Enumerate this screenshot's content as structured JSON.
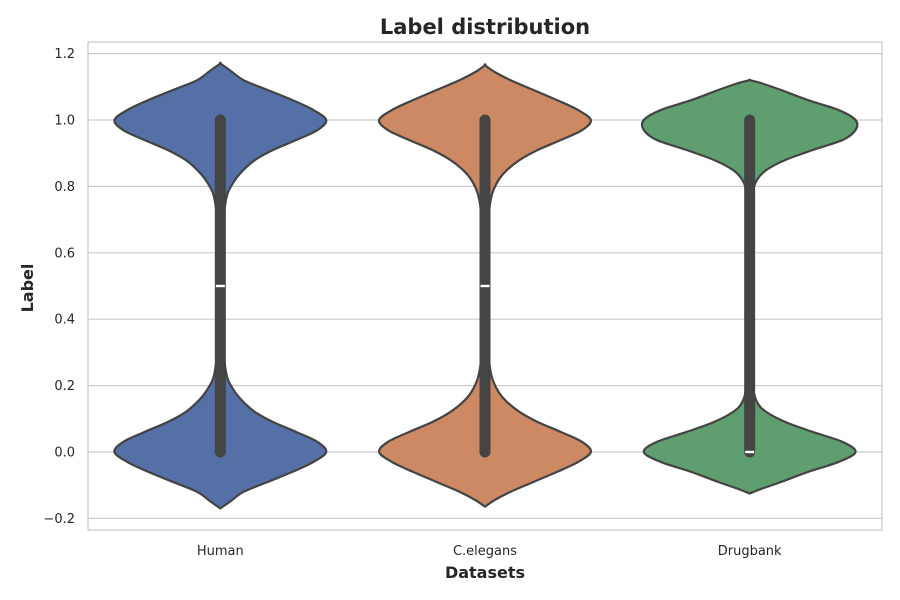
{
  "chart_data": {
    "type": "violin",
    "title": "Label distribution",
    "xlabel": "Datasets",
    "ylabel": "Label",
    "categories": [
      "Human",
      "C.elegans",
      "Drugbank"
    ],
    "ylim": [
      -0.235,
      1.235
    ],
    "yticks": [
      -0.2,
      0.0,
      0.2,
      0.4,
      0.6,
      0.8,
      1.0,
      1.2
    ],
    "ytick_labels": [
      "−0.2",
      "0.0",
      "0.2",
      "0.4",
      "0.6",
      "0.8",
      "1.0",
      "1.2"
    ],
    "grid": "y",
    "series": [
      {
        "category": "Human",
        "color": "#5470a6",
        "median": 0.5,
        "q1": 0.0,
        "q3": 1.0,
        "density_max_halfwidth": 0.4,
        "density_profile": [
          [
            -0.17,
            0.0
          ],
          [
            -0.15,
            0.09
          ],
          [
            -0.12,
            0.22
          ],
          [
            -0.09,
            0.45
          ],
          [
            -0.06,
            0.68
          ],
          [
            -0.03,
            0.88
          ],
          [
            0.0,
            1.0
          ],
          [
            0.03,
            0.92
          ],
          [
            0.06,
            0.72
          ],
          [
            0.09,
            0.5
          ],
          [
            0.12,
            0.33
          ],
          [
            0.15,
            0.22
          ],
          [
            0.18,
            0.14
          ],
          [
            0.22,
            0.07
          ],
          [
            0.27,
            0.04
          ],
          [
            0.35,
            0.025
          ],
          [
            0.5,
            0.02
          ],
          [
            0.65,
            0.025
          ],
          [
            0.73,
            0.04
          ],
          [
            0.78,
            0.07
          ],
          [
            0.82,
            0.14
          ],
          [
            0.85,
            0.22
          ],
          [
            0.88,
            0.33
          ],
          [
            0.91,
            0.5
          ],
          [
            0.94,
            0.72
          ],
          [
            0.97,
            0.92
          ],
          [
            1.0,
            1.0
          ],
          [
            1.03,
            0.88
          ],
          [
            1.06,
            0.68
          ],
          [
            1.09,
            0.45
          ],
          [
            1.12,
            0.22
          ],
          [
            1.15,
            0.09
          ],
          [
            1.17,
            0.0
          ]
        ]
      },
      {
        "category": "C.elegans",
        "color": "#cc8963",
        "median": 0.5,
        "q1": 0.0,
        "q3": 1.0,
        "density_max_halfwidth": 0.4,
        "density_profile": [
          [
            -0.165,
            0.0
          ],
          [
            -0.145,
            0.09
          ],
          [
            -0.12,
            0.24
          ],
          [
            -0.09,
            0.46
          ],
          [
            -0.06,
            0.68
          ],
          [
            -0.03,
            0.88
          ],
          [
            0.0,
            1.0
          ],
          [
            0.03,
            0.92
          ],
          [
            0.06,
            0.72
          ],
          [
            0.09,
            0.5
          ],
          [
            0.12,
            0.33
          ],
          [
            0.15,
            0.21
          ],
          [
            0.18,
            0.13
          ],
          [
            0.22,
            0.07
          ],
          [
            0.27,
            0.04
          ],
          [
            0.35,
            0.025
          ],
          [
            0.5,
            0.02
          ],
          [
            0.65,
            0.025
          ],
          [
            0.73,
            0.04
          ],
          [
            0.78,
            0.07
          ],
          [
            0.82,
            0.13
          ],
          [
            0.85,
            0.21
          ],
          [
            0.88,
            0.33
          ],
          [
            0.91,
            0.5
          ],
          [
            0.94,
            0.72
          ],
          [
            0.97,
            0.92
          ],
          [
            1.0,
            1.0
          ],
          [
            1.03,
            0.88
          ],
          [
            1.06,
            0.68
          ],
          [
            1.09,
            0.46
          ],
          [
            1.12,
            0.24
          ],
          [
            1.145,
            0.09
          ],
          [
            1.165,
            0.0
          ]
        ]
      },
      {
        "category": "Drugbank",
        "color": "#5f9e6e",
        "median": 0.0,
        "q1": 0.0,
        "q3": 1.0,
        "density_max_halfwidth": 0.4,
        "density_profile": [
          [
            -0.125,
            0.0
          ],
          [
            -0.11,
            0.12
          ],
          [
            -0.09,
            0.3
          ],
          [
            -0.06,
            0.55
          ],
          [
            -0.03,
            0.84
          ],
          [
            0.0,
            1.0
          ],
          [
            0.03,
            0.88
          ],
          [
            0.06,
            0.6
          ],
          [
            0.09,
            0.34
          ],
          [
            0.12,
            0.16
          ],
          [
            0.15,
            0.07
          ],
          [
            0.2,
            0.03
          ],
          [
            0.3,
            0.02
          ],
          [
            0.5,
            0.018
          ],
          [
            0.7,
            0.02
          ],
          [
            0.78,
            0.03
          ],
          [
            0.82,
            0.07
          ],
          [
            0.85,
            0.16
          ],
          [
            0.88,
            0.34
          ],
          [
            0.91,
            0.6
          ],
          [
            0.94,
            0.88
          ],
          [
            0.97,
            1.0
          ],
          [
            1.0,
            1.0
          ],
          [
            1.03,
            0.84
          ],
          [
            1.06,
            0.55
          ],
          [
            1.09,
            0.3
          ],
          [
            1.11,
            0.12
          ],
          [
            1.12,
            0.0
          ]
        ]
      }
    ]
  }
}
